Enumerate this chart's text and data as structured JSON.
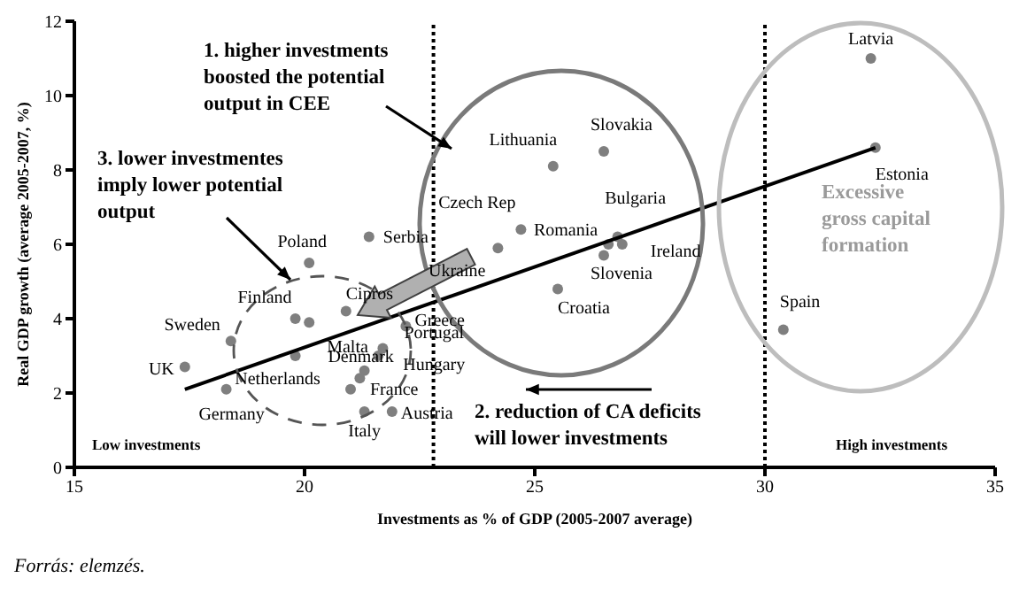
{
  "chart_data": {
    "type": "scatter",
    "xlabel": "Investments as % of GDP (2005-2007 average)",
    "ylabel": "Real GDP growth (average 2005-2007, %)",
    "xlim": [
      15,
      35
    ],
    "xticks": [
      15,
      20,
      25,
      30,
      35
    ],
    "ylim": [
      0,
      12
    ],
    "yticks": [
      0,
      2,
      4,
      6,
      8,
      10,
      12
    ],
    "marker": "circle",
    "series": [
      {
        "color": "#7f7f7f",
        "x": [
          32.3,
          32.4,
          30.4,
          26.5,
          25.4,
          24.7,
          24.2,
          26.8,
          26.6,
          26.9,
          26.5,
          25.5,
          21.4,
          20.1,
          19.8,
          20.1,
          19.8,
          20.9,
          18.4,
          17.4,
          18.3,
          22.2,
          21.7,
          21.6,
          21.3,
          21.2,
          21.0,
          21.3,
          21.9
        ],
        "values": [
          11.0,
          8.6,
          3.7,
          8.5,
          8.1,
          6.4,
          5.9,
          6.2,
          6.0,
          6.0,
          5.7,
          4.8,
          6.2,
          5.5,
          4.0,
          3.9,
          3.0,
          4.2,
          3.4,
          2.7,
          2.1,
          3.8,
          3.2,
          3.0,
          2.6,
          2.4,
          2.1,
          1.5,
          1.5
        ],
        "value_labels": [
          "Latvia",
          "Estonia",
          "Spain",
          "Slovakia",
          "Lithuania",
          "Czech Rep",
          "Ukraine",
          "Bulgaria",
          "Romania",
          "Ireland",
          "Slovenia",
          "Croatia",
          "Serbia",
          "Poland",
          "Finland",
          "Malta",
          "Netherlands",
          "Cipros",
          "Sweden",
          "UK",
          "Germany",
          "Greece",
          "Portugal",
          "Hungary",
          "Denmark",
          null,
          "France",
          "Italy",
          "Austria"
        ]
      },
      {
        "type": "line",
        "color": "#000000",
        "marker": "none",
        "line_style": "solid",
        "x": [
          17.4,
          32.4
        ],
        "values": [
          2.1,
          8.6
        ]
      }
    ],
    "ref_lines": [
      {
        "axis": "x",
        "value": 22.8,
        "line_style": "dotted",
        "color": "#000000"
      },
      {
        "axis": "x",
        "value": 30,
        "line_style": "dotted",
        "color": "#000000"
      }
    ],
    "annotations": [
      "1. higher investments boosted the potential output in CEE",
      "3. lower investmentes imply lower potential output",
      "2. reduction of CA deficits will lower investments",
      "Excessive gross capital formation",
      "Low investments",
      "High investments",
      "Forrás: elemzés."
    ]
  }
}
